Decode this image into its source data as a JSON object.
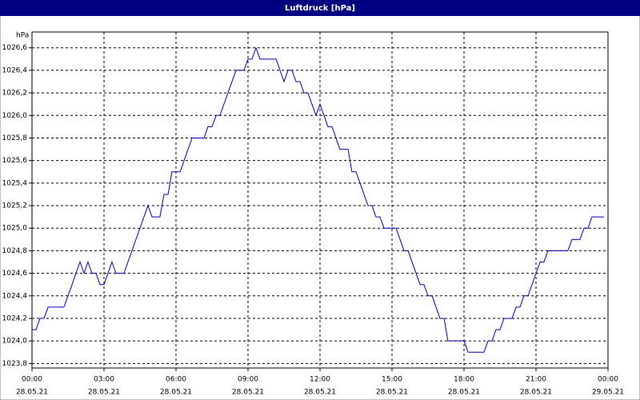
{
  "chart_data": {
    "type": "line",
    "title": "Luftdruck [hPa]",
    "y_label": "hPa",
    "grid": true,
    "xlim": [
      0,
      24
    ],
    "ylim": [
      1023.76,
      1026.74
    ],
    "xticks": [
      {
        "value": 0,
        "label": "00:00",
        "date": "28.05.21"
      },
      {
        "value": 3,
        "label": "03:00",
        "date": "28.05.21"
      },
      {
        "value": 6,
        "label": "06:00",
        "date": "28.05.21"
      },
      {
        "value": 9,
        "label": "09:00",
        "date": "28.05.21"
      },
      {
        "value": 12,
        "label": "12:00",
        "date": "28.05.21"
      },
      {
        "value": 15,
        "label": "15:00",
        "date": "28.05.21"
      },
      {
        "value": 18,
        "label": "18:00",
        "date": "28.05.21"
      },
      {
        "value": 21,
        "label": "21:00",
        "date": "28.05.21"
      },
      {
        "value": 24,
        "label": "00:00",
        "date": "29.05.21"
      }
    ],
    "yticks": [
      {
        "value": 1023.8,
        "label": "1023,8"
      },
      {
        "value": 1024.0,
        "label": "1024,0"
      },
      {
        "value": 1024.2,
        "label": "1024,2"
      },
      {
        "value": 1024.4,
        "label": "1024,4"
      },
      {
        "value": 1024.6,
        "label": "1024,6"
      },
      {
        "value": 1024.8,
        "label": "1024,8"
      },
      {
        "value": 1025.0,
        "label": "1025,0"
      },
      {
        "value": 1025.2,
        "label": "1025,2"
      },
      {
        "value": 1025.4,
        "label": "1025,4"
      },
      {
        "value": 1025.6,
        "label": "1025,6"
      },
      {
        "value": 1025.8,
        "label": "1025,8"
      },
      {
        "value": 1026.0,
        "label": "1026,0"
      },
      {
        "value": 1026.2,
        "label": "1026,2"
      },
      {
        "value": 1026.4,
        "label": "1026,4"
      },
      {
        "value": 1026.6,
        "label": "1026,6"
      }
    ],
    "x": [
      0,
      0.17,
      0.33,
      0.5,
      0.67,
      1.33,
      1.5,
      1.67,
      1.83,
      2.0,
      2.17,
      2.33,
      2.5,
      2.67,
      2.83,
      3.0,
      3.33,
      3.5,
      3.83,
      4.83,
      5.0,
      5.33,
      5.5,
      5.67,
      5.83,
      6.17,
      6.67,
      7.17,
      7.33,
      7.5,
      7.67,
      7.83,
      8.5,
      8.83,
      9.0,
      9.17,
      9.33,
      9.5,
      10.17,
      10.5,
      10.67,
      10.83,
      11.0,
      11.17,
      11.33,
      11.5,
      11.83,
      12.0,
      12.33,
      12.5,
      12.83,
      13.17,
      13.33,
      13.5,
      14.0,
      14.17,
      14.33,
      14.5,
      14.67,
      15.17,
      15.5,
      15.67,
      16.17,
      16.33,
      16.5,
      16.67,
      17.0,
      17.17,
      17.33,
      18.0,
      18.17,
      18.83,
      19.0,
      19.17,
      19.33,
      19.5,
      19.67,
      20.0,
      20.17,
      20.33,
      20.5,
      20.67,
      21.0,
      21.17,
      21.33,
      21.5,
      22.33,
      22.5,
      22.83,
      23.0,
      23.17,
      23.33,
      23.83
    ],
    "series": [
      {
        "name": "Luftdruck",
        "color": "#0000c0",
        "values": [
          1024.1,
          1024.1,
          1024.2,
          1024.2,
          1024.3,
          1024.3,
          1024.4,
          1024.5,
          1024.6,
          1024.7,
          1024.6,
          1024.7,
          1024.6,
          1024.6,
          1024.5,
          1024.5,
          1024.7,
          1024.6,
          1024.6,
          1025.2,
          1025.1,
          1025.1,
          1025.3,
          1025.3,
          1025.5,
          1025.5,
          1025.8,
          1025.8,
          1025.9,
          1025.9,
          1026.0,
          1026.0,
          1026.4,
          1026.4,
          1026.5,
          1026.5,
          1026.6,
          1026.5,
          1026.5,
          1026.3,
          1026.4,
          1026.4,
          1026.3,
          1026.3,
          1026.2,
          1026.2,
          1026.0,
          1026.1,
          1025.9,
          1025.9,
          1025.7,
          1025.7,
          1025.5,
          1025.5,
          1025.2,
          1025.2,
          1025.1,
          1025.1,
          1025.0,
          1025.0,
          1024.8,
          1024.8,
          1024.5,
          1024.5,
          1024.4,
          1024.4,
          1024.2,
          1024.2,
          1024.0,
          1024.0,
          1023.9,
          1023.9,
          1024.0,
          1024.0,
          1024.1,
          1024.1,
          1024.2,
          1024.2,
          1024.3,
          1024.3,
          1024.4,
          1024.4,
          1024.6,
          1024.7,
          1024.7,
          1024.8,
          1024.8,
          1024.9,
          1024.9,
          1025.0,
          1025.0,
          1025.1,
          1025.1
        ]
      }
    ]
  }
}
